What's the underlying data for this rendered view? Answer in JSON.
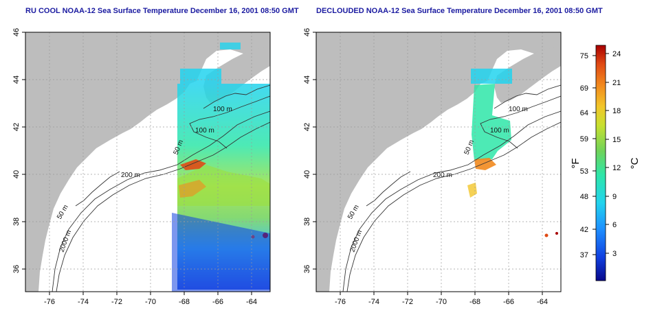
{
  "panels": [
    {
      "title": "RU COOL NOAA-12 Sea Surface Temperature December 16, 2001 08:50 GMT",
      "contour_labels": [
        "100 m",
        "100 m",
        "50 m",
        "200 m",
        "50 m",
        "2000 m"
      ]
    },
    {
      "title": "DECLOUDED NOAA-12 Sea Surface Temperature December 16, 2001 08:50 GMT",
      "contour_labels": [
        "100 m",
        "100 m",
        "50 m",
        "200 m",
        "50 m",
        "2000 m"
      ]
    }
  ],
  "axes": {
    "x_ticks": [
      "-76",
      "-74",
      "-72",
      "-70",
      "-68",
      "-66",
      "-64"
    ],
    "y_ticks": [
      "46",
      "44",
      "42",
      "40",
      "38",
      "36"
    ]
  },
  "colorbar": {
    "fahrenheit_unit": "°F",
    "celsius_unit": "°C",
    "fahrenheit_ticks": [
      "75",
      "69",
      "64",
      "59",
      "53",
      "48",
      "42",
      "37"
    ],
    "celsius_ticks": [
      "24",
      "21",
      "18",
      "15",
      "12",
      "9",
      "6",
      "3"
    ],
    "colors": [
      "#08088a",
      "#1040e0",
      "#1e90ff",
      "#22d3ee",
      "#2ee6a8",
      "#6fd35a",
      "#c8e030",
      "#f2c62a",
      "#f28a1e",
      "#e04a14",
      "#a80000"
    ]
  },
  "colors": {
    "land": "#bdbdbd",
    "ocean": "#ffffff",
    "contour": "#333333",
    "title": "#1a1aa0"
  }
}
